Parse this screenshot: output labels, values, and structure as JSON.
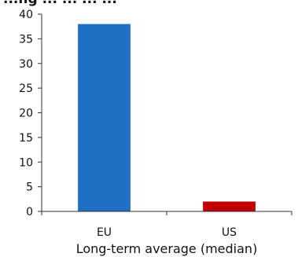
{
  "top_text": "...ng ... ... ... ...",
  "chart_data": {
    "type": "bar",
    "categories": [
      "EU",
      "US"
    ],
    "values": [
      38,
      2
    ],
    "colors": [
      "#1f6fc5",
      "#c00000"
    ],
    "xlabel": "Long-term average (median)",
    "ylabel": "",
    "ylim": [
      0,
      40
    ],
    "yticks": [
      0,
      5,
      10,
      15,
      20,
      25,
      30,
      35,
      40
    ],
    "grid": false,
    "legend": "none"
  }
}
